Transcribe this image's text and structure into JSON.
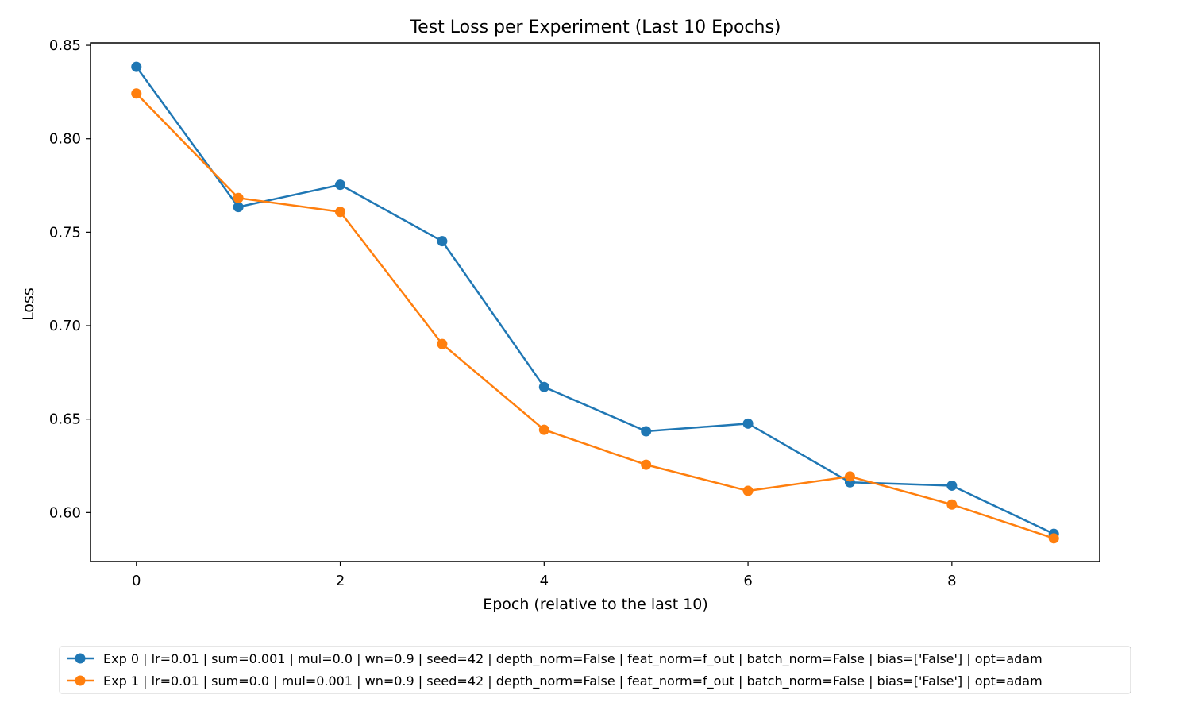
{
  "chart_data": {
    "type": "line",
    "title": "Test Loss per Experiment (Last 10 Epochs)",
    "xlabel": "Epoch (relative to the last 10)",
    "ylabel": "Loss",
    "xlim": [
      -0.45,
      9.45
    ],
    "ylim": [
      0.5738,
      0.8513
    ],
    "xticks": [
      0,
      2,
      4,
      6,
      8
    ],
    "xtick_labels": [
      "0",
      "2",
      "4",
      "6",
      "8"
    ],
    "yticks": [
      0.6,
      0.65,
      0.7,
      0.75,
      0.8,
      0.85
    ],
    "ytick_labels": [
      "0.60",
      "0.65",
      "0.70",
      "0.75",
      "0.80",
      "0.85"
    ],
    "grid": false,
    "legend_position": "below the plot",
    "x": [
      0,
      1,
      2,
      3,
      4,
      5,
      6,
      7,
      8,
      9
    ],
    "series": [
      {
        "name": "Exp 0 | lr=0.01 | sum=0.001 | mul=0.0 | wn=0.9 | seed=42 | depth_norm=False | feat_norm=f_out | batch_norm=False | bias=['False'] | opt=adam",
        "color": "#1f77b4",
        "values": [
          0.8385,
          0.7635,
          0.7754,
          0.7452,
          0.6672,
          0.6435,
          0.6476,
          0.6162,
          0.6144,
          0.5886
        ]
      },
      {
        "name": "Exp 1 | lr=0.01 | sum=0.0 | mul=0.001 | wn=0.9 | seed=42 | depth_norm=False | feat_norm=f_out | batch_norm=False | bias=['False'] | opt=adam",
        "color": "#ff7f0e",
        "values": [
          0.8242,
          0.7683,
          0.7609,
          0.6902,
          0.6443,
          0.6256,
          0.6116,
          0.6193,
          0.6043,
          0.5862
        ]
      }
    ]
  }
}
